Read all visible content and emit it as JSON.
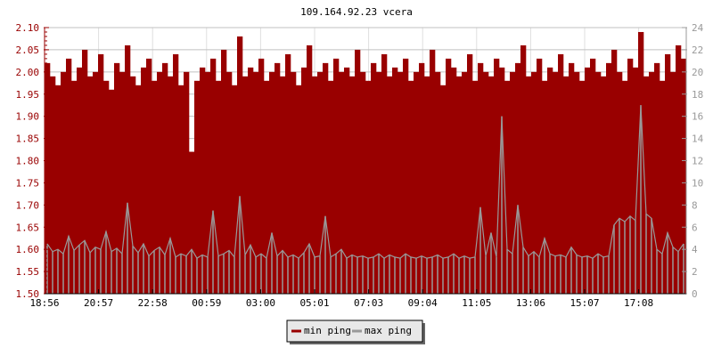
{
  "chart_data": {
    "type": "area",
    "title": "109.164.92.23 vcera",
    "xlabel": "",
    "ylabel": "",
    "x_ticks": [
      "18:56",
      "20:57",
      "22:58",
      "00:59",
      "03:00",
      "05:01",
      "07:03",
      "09:04",
      "11:05",
      "13:06",
      "15:07",
      "17:08"
    ],
    "y_left": {
      "range": [
        1.5,
        2.1
      ],
      "ticks": [
        "1.50",
        "1.55",
        "1.60",
        "1.65",
        "1.70",
        "1.75",
        "1.80",
        "1.85",
        "1.90",
        "1.95",
        "2.00",
        "2.05",
        "2.10"
      ]
    },
    "y_right": {
      "range": [
        0,
        24
      ],
      "ticks": [
        "0",
        "2",
        "4",
        "6",
        "8",
        "10",
        "12",
        "14",
        "16",
        "18",
        "20",
        "22",
        "24"
      ]
    },
    "grid": true,
    "legend_placement": "bottom-center",
    "colors": {
      "min": "#990000",
      "max": "#999999",
      "left_axis_text": "#990000",
      "right_axis_text": "#999999"
    },
    "series": [
      {
        "name": "min ping",
        "axis": "left",
        "values": [
          2.02,
          1.99,
          1.97,
          2.0,
          2.03,
          1.98,
          2.01,
          2.05,
          1.99,
          2.0,
          2.04,
          1.98,
          1.96,
          2.02,
          2.0,
          2.06,
          1.99,
          1.97,
          2.01,
          2.03,
          1.98,
          2.0,
          2.02,
          1.99,
          2.04,
          1.97,
          2.0,
          1.82,
          1.98,
          2.01,
          2.0,
          2.03,
          1.98,
          2.05,
          2.0,
          1.97,
          2.08,
          1.99,
          2.01,
          2.0,
          2.03,
          1.98,
          2.0,
          2.02,
          1.99,
          2.04,
          2.0,
          1.97,
          2.01,
          2.06,
          1.99,
          2.0,
          2.02,
          1.98,
          2.03,
          2.0,
          2.01,
          1.99,
          2.05,
          2.0,
          1.98,
          2.02,
          2.0,
          2.04,
          1.99,
          2.01,
          2.0,
          2.03,
          1.98,
          2.0,
          2.02,
          1.99,
          2.05,
          2.0,
          1.97,
          2.03,
          2.01,
          1.99,
          2.0,
          2.04,
          1.98,
          2.02,
          2.0,
          1.99,
          2.03,
          2.01,
          1.98,
          2.0,
          2.02,
          2.06,
          1.99,
          2.0,
          2.03,
          1.98,
          2.01,
          2.0,
          2.04,
          1.99,
          2.02,
          2.0,
          1.98,
          2.01,
          2.03,
          2.0,
          1.99,
          2.02,
          2.05,
          2.0,
          1.98,
          2.03,
          2.01,
          2.09,
          1.99,
          2.0,
          2.02,
          1.98,
          2.04,
          2.0,
          2.06,
          2.03
        ]
      },
      {
        "name": "max ping",
        "axis": "right",
        "values": [
          4.5,
          3.8,
          4.0,
          3.6,
          5.2,
          3.9,
          4.4,
          4.8,
          3.7,
          4.2,
          4.0,
          5.6,
          3.8,
          4.1,
          3.6,
          8.2,
          4.3,
          3.7,
          4.5,
          3.4,
          3.9,
          4.2,
          3.5,
          5.0,
          3.3,
          3.6,
          3.4,
          4.0,
          3.2,
          3.5,
          3.3,
          7.5,
          3.4,
          3.6,
          3.9,
          3.3,
          8.8,
          3.5,
          4.4,
          3.3,
          3.6,
          3.2,
          5.5,
          3.4,
          3.9,
          3.3,
          3.5,
          3.2,
          3.7,
          4.5,
          3.3,
          3.4,
          7.0,
          3.3,
          3.6,
          4.0,
          3.2,
          3.5,
          3.3,
          3.4,
          3.2,
          3.3,
          3.6,
          3.2,
          3.5,
          3.3,
          3.2,
          3.6,
          3.3,
          3.2,
          3.4,
          3.2,
          3.3,
          3.5,
          3.2,
          3.3,
          3.6,
          3.2,
          3.4,
          3.2,
          3.3,
          7.8,
          3.4,
          5.5,
          3.3,
          16.0,
          4.0,
          3.6,
          8.0,
          4.2,
          3.4,
          3.8,
          3.3,
          5.0,
          3.6,
          3.4,
          3.5,
          3.3,
          4.2,
          3.5,
          3.3,
          3.4,
          3.2,
          3.6,
          3.3,
          3.4,
          6.2,
          6.8,
          6.5,
          7.0,
          6.6,
          17.0,
          7.2,
          6.8,
          4.0,
          3.6,
          5.5,
          4.2,
          3.8,
          4.5
        ]
      }
    ]
  }
}
